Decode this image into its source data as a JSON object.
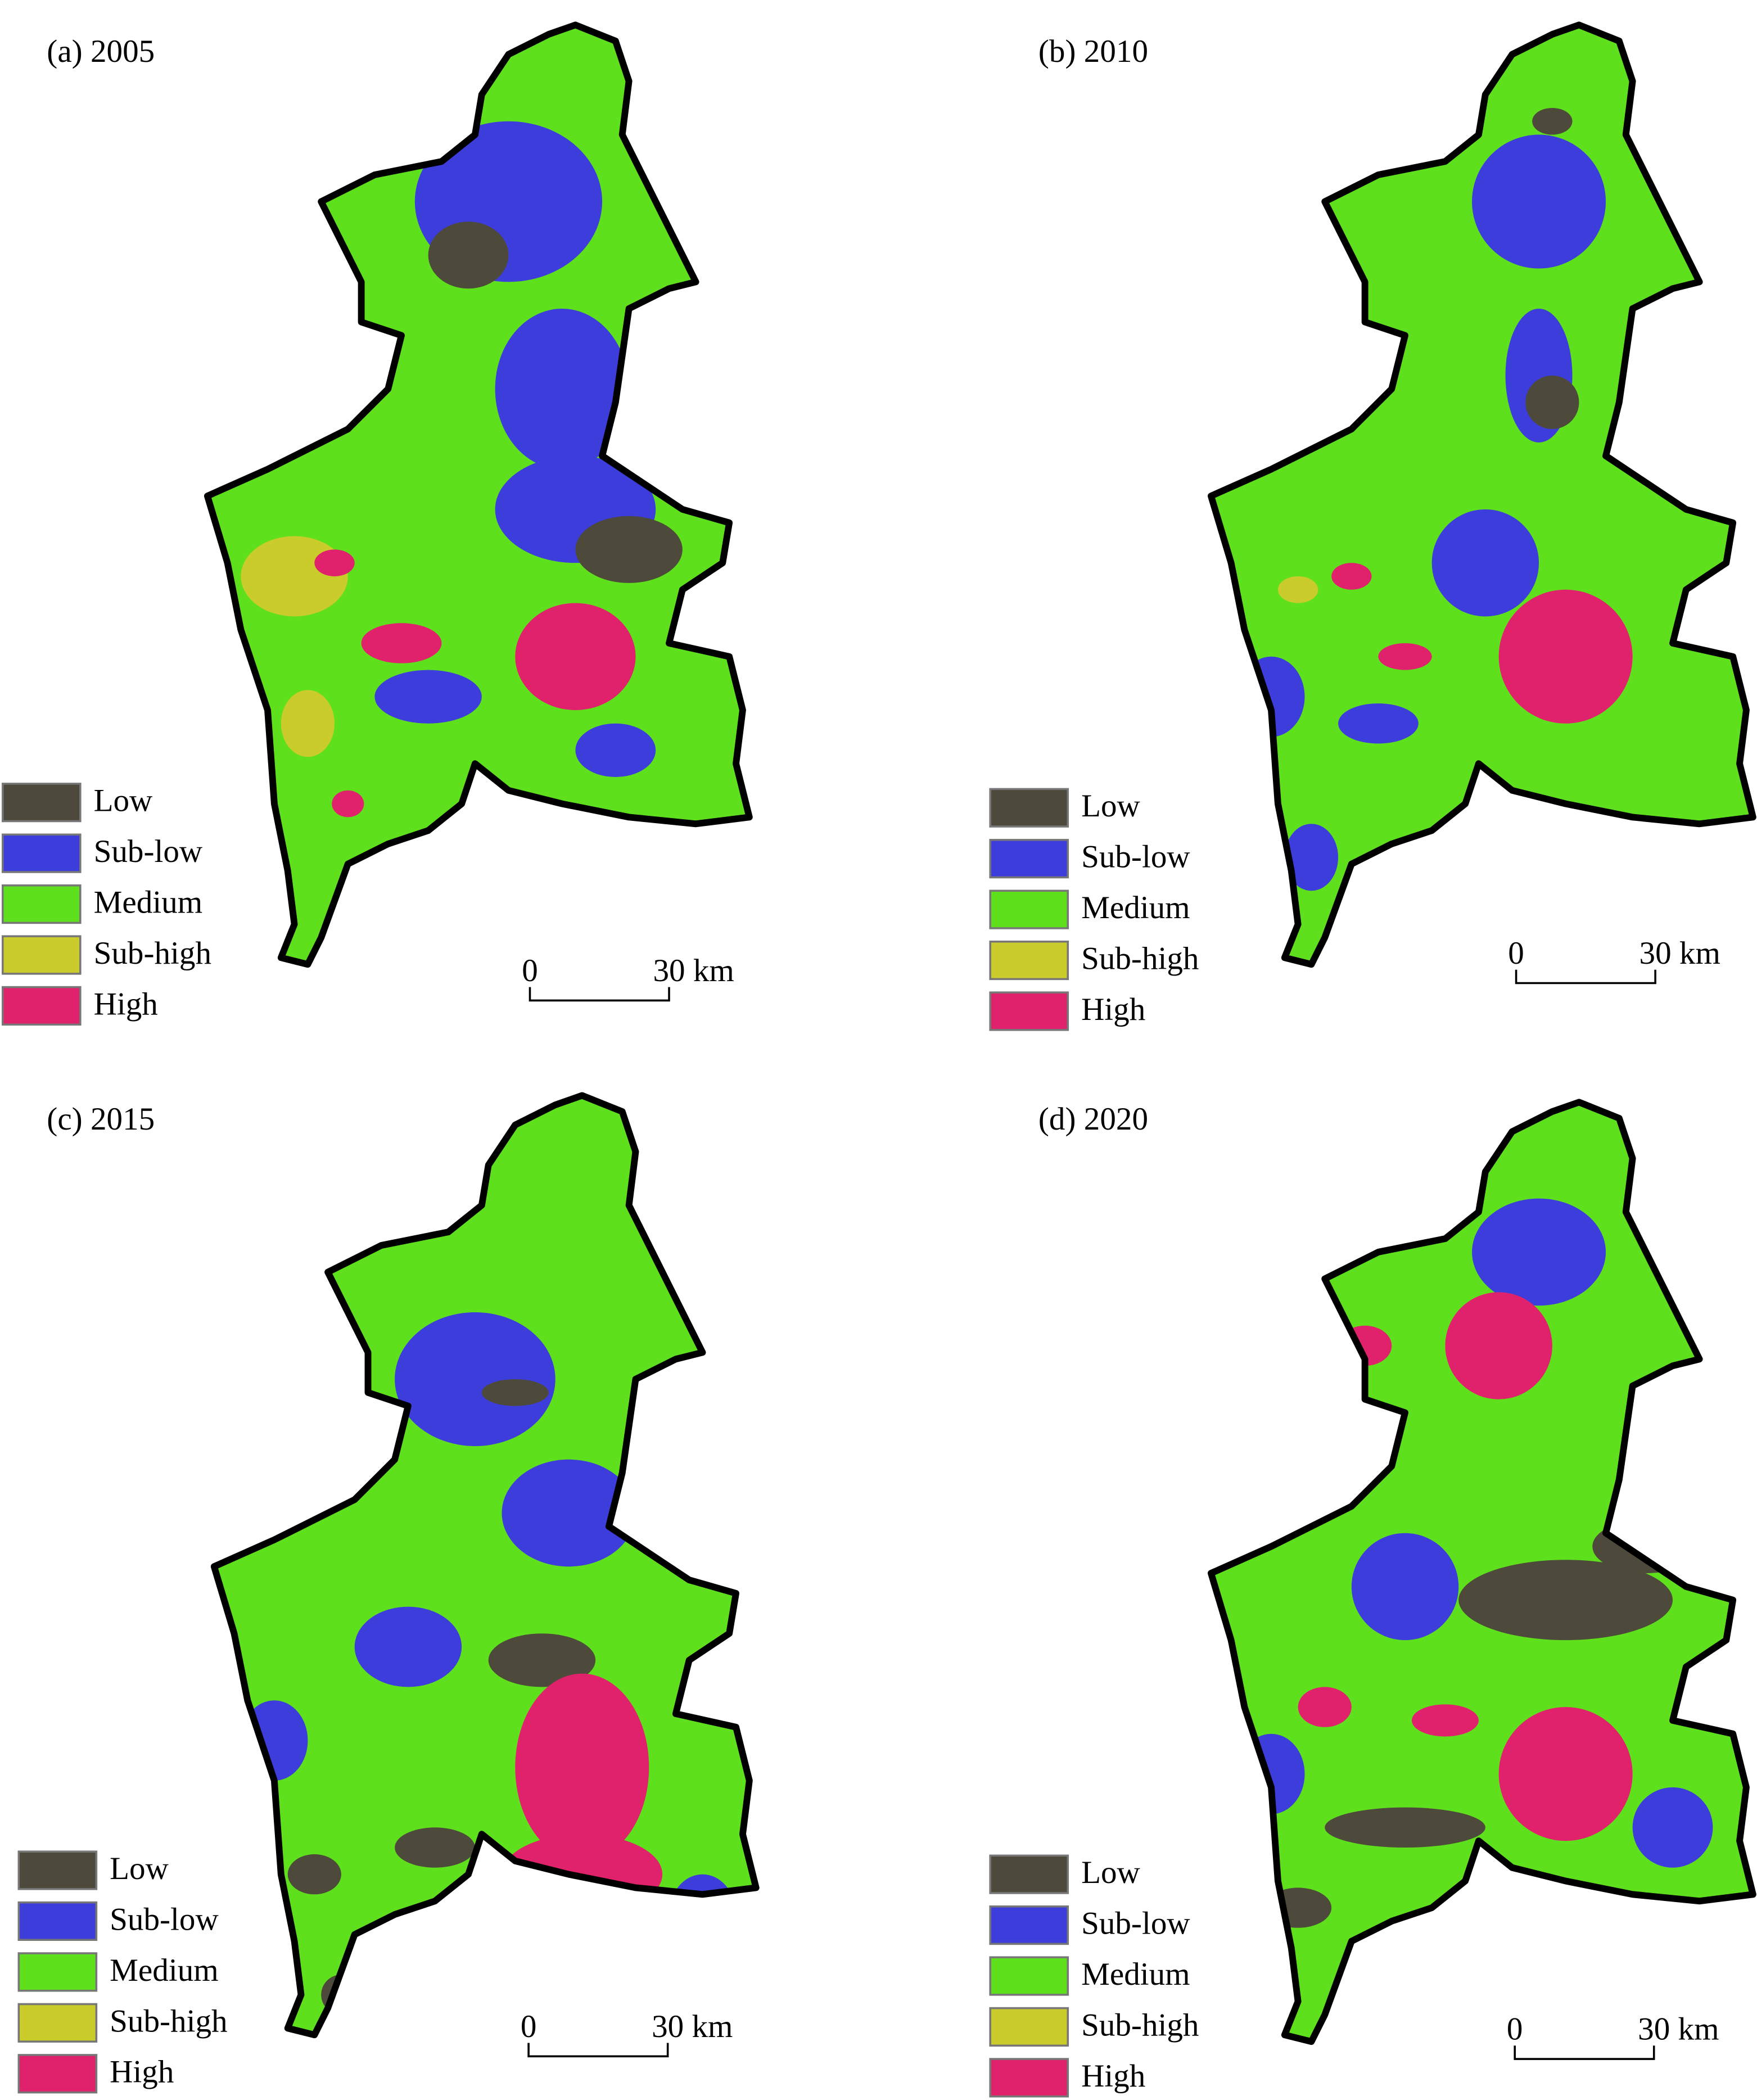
{
  "panels": [
    {
      "title": "(a) 2005"
    },
    {
      "title": "(b) 2010"
    },
    {
      "title": "(c) 2015"
    },
    {
      "title": "(d) 2020"
    }
  ],
  "legend": [
    {
      "label": "Low",
      "color": "#4d4a3b"
    },
    {
      "label": "Sub-low",
      "color": "#3d3ddc"
    },
    {
      "label": "Medium",
      "color": "#5fe01c"
    },
    {
      "label": "Sub-high",
      "color": "#c9cc2a"
    },
    {
      "label": "High",
      "color": "#e0226c"
    }
  ],
  "scale_bar": {
    "start": "0",
    "end": "30 km"
  }
}
